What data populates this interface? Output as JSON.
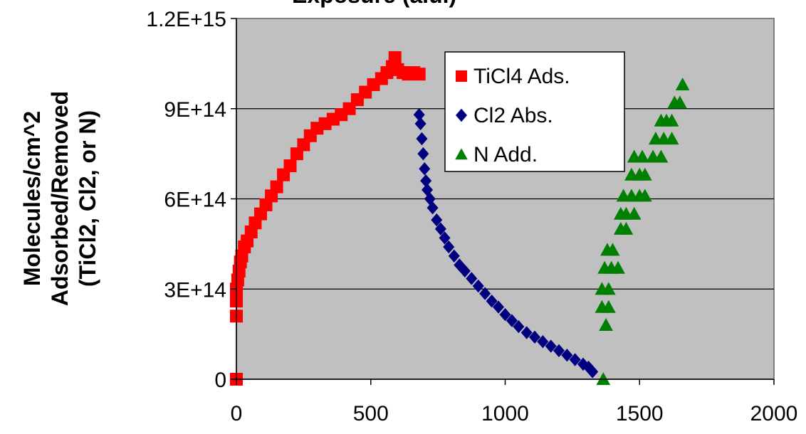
{
  "chart_data": {
    "type": "scatter",
    "title": "Exposure (a.u.)",
    "ylabel_lines": [
      "Molecules/cm^2",
      "Adsorbed/Removed",
      "(TiCl2, Cl2, or N)"
    ],
    "xlim": [
      0,
      2000
    ],
    "ylim": [
      0,
      1200000000000000.0
    ],
    "x_ticks": [
      0,
      500,
      1000,
      1500,
      2000
    ],
    "x_tick_labels": [
      "0",
      "500",
      "1000",
      "1500",
      "2000"
    ],
    "y_ticks": [
      0,
      300000000000000.0,
      600000000000000.0,
      900000000000000.0,
      1200000000000000.0
    ],
    "y_tick_labels": [
      "0",
      "3E+14",
      "6E+14",
      "9E+14",
      "1.2E+15"
    ],
    "grid": "horizontal",
    "legend_position": "top-right inside plot",
    "series": [
      {
        "name": "TiCl4 Ads.",
        "marker": "square",
        "color": "#ff0000",
        "points": [
          [
            0,
            0
          ],
          [
            0,
            210000000000000.0
          ],
          [
            0,
            260000000000000.0
          ],
          [
            0,
            300000000000000.0
          ],
          [
            5,
            330000000000000.0
          ],
          [
            10,
            360000000000000.0
          ],
          [
            15,
            390000000000000.0
          ],
          [
            20,
            410000000000000.0
          ],
          [
            30,
            440000000000000.0
          ],
          [
            40,
            460000000000000.0
          ],
          [
            55,
            490000000000000.0
          ],
          [
            70,
            520000000000000.0
          ],
          [
            90,
            550000000000000.0
          ],
          [
            110,
            580000000000000.0
          ],
          [
            130,
            610000000000000.0
          ],
          [
            150,
            640000000000000.0
          ],
          [
            175,
            680000000000000.0
          ],
          [
            200,
            710000000000000.0
          ],
          [
            225,
            750000000000000.0
          ],
          [
            250,
            780000000000000.0
          ],
          [
            275,
            810000000000000.0
          ],
          [
            300,
            835000000000000.0
          ],
          [
            330,
            850000000000000.0
          ],
          [
            360,
            865000000000000.0
          ],
          [
            390,
            880000000000000.0
          ],
          [
            420,
            900000000000000.0
          ],
          [
            450,
            930000000000000.0
          ],
          [
            480,
            955000000000000.0
          ],
          [
            510,
            980000000000000.0
          ],
          [
            540,
            1000000000000000.0
          ],
          [
            560,
            1020000000000000.0
          ],
          [
            580,
            1040000000000000.0
          ],
          [
            590,
            1070000000000000.0
          ],
          [
            600,
            1030000000000000.0
          ],
          [
            620,
            1020000000000000.0
          ],
          [
            640,
            1015000000000000.0
          ],
          [
            660,
            1020000000000000.0
          ],
          [
            680,
            1015000000000000.0
          ]
        ]
      },
      {
        "name": "Cl2 Abs.",
        "marker": "diamond",
        "color": "#000080",
        "points": [
          [
            680,
            880000000000000.0
          ],
          [
            685,
            850000000000000.0
          ],
          [
            690,
            800000000000000.0
          ],
          [
            695,
            750000000000000.0
          ],
          [
            700,
            700000000000000.0
          ],
          [
            705,
            660000000000000.0
          ],
          [
            710,
            630000000000000.0
          ],
          [
            720,
            600000000000000.0
          ],
          [
            730,
            570000000000000.0
          ],
          [
            745,
            530000000000000.0
          ],
          [
            760,
            500000000000000.0
          ],
          [
            775,
            470000000000000.0
          ],
          [
            790,
            440000000000000.0
          ],
          [
            810,
            410000000000000.0
          ],
          [
            830,
            380000000000000.0
          ],
          [
            850,
            360000000000000.0
          ],
          [
            875,
            335000000000000.0
          ],
          [
            900,
            310000000000000.0
          ],
          [
            925,
            285000000000000.0
          ],
          [
            950,
            260000000000000.0
          ],
          [
            975,
            240000000000000.0
          ],
          [
            1000,
            215000000000000.0
          ],
          [
            1025,
            195000000000000.0
          ],
          [
            1050,
            175000000000000.0
          ],
          [
            1080,
            155000000000000.0
          ],
          [
            1110,
            140000000000000.0
          ],
          [
            1140,
            125000000000000.0
          ],
          [
            1170,
            110000000000000.0
          ],
          [
            1200,
            95000000000000.0
          ],
          [
            1230,
            80000000000000.0
          ],
          [
            1260,
            65000000000000.0
          ],
          [
            1290,
            50000000000000.0
          ],
          [
            1310,
            40000000000000.0
          ],
          [
            1320,
            30000000000000.0
          ],
          [
            1325,
            25000000000000.0
          ]
        ]
      },
      {
        "name": "N Add.",
        "marker": "triangle",
        "color": "#008000",
        "points": [
          [
            1365,
            0
          ],
          [
            1375,
            180000000000000.0
          ],
          [
            1360,
            240000000000000.0
          ],
          [
            1385,
            240000000000000.0
          ],
          [
            1360,
            300000000000000.0
          ],
          [
            1385,
            300000000000000.0
          ],
          [
            1370,
            370000000000000.0
          ],
          [
            1395,
            370000000000000.0
          ],
          [
            1420,
            370000000000000.0
          ],
          [
            1380,
            430000000000000.0
          ],
          [
            1400,
            430000000000000.0
          ],
          [
            1430,
            500000000000000.0
          ],
          [
            1450,
            500000000000000.0
          ],
          [
            1430,
            550000000000000.0
          ],
          [
            1450,
            550000000000000.0
          ],
          [
            1480,
            550000000000000.0
          ],
          [
            1440,
            610000000000000.0
          ],
          [
            1470,
            610000000000000.0
          ],
          [
            1500,
            610000000000000.0
          ],
          [
            1520,
            610000000000000.0
          ],
          [
            1470,
            680000000000000.0
          ],
          [
            1500,
            680000000000000.0
          ],
          [
            1520,
            680000000000000.0
          ],
          [
            1480,
            740000000000000.0
          ],
          [
            1510,
            740000000000000.0
          ],
          [
            1550,
            740000000000000.0
          ],
          [
            1580,
            740000000000000.0
          ],
          [
            1560,
            800000000000000.0
          ],
          [
            1590,
            800000000000000.0
          ],
          [
            1620,
            800000000000000.0
          ],
          [
            1580,
            860000000000000.0
          ],
          [
            1600,
            860000000000000.0
          ],
          [
            1620,
            860000000000000.0
          ],
          [
            1630,
            920000000000000.0
          ],
          [
            1650,
            920000000000000.0
          ],
          [
            1660,
            980000000000000.0
          ]
        ]
      }
    ]
  }
}
